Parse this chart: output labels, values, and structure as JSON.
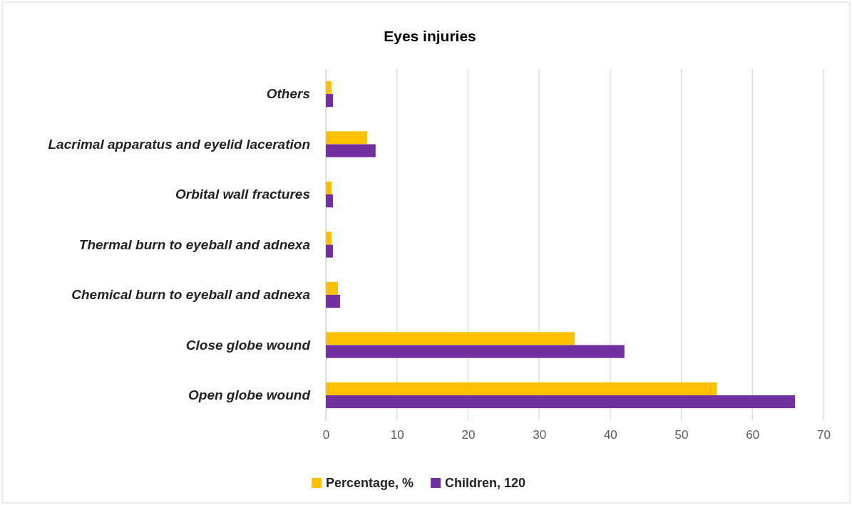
{
  "chart_data": {
    "type": "bar",
    "orientation": "horizontal",
    "title": "Eyes injuries",
    "categories": [
      "Others",
      "Lacrimal apparatus and eyelid laceration",
      "Orbital wall fractures",
      "Thermal burn to eyeball and adnexa",
      "Chemical burn to eyeball and adnexa",
      "Close globe wound",
      "Open globe wound"
    ],
    "series": [
      {
        "name": "Percentage, %",
        "color": "#ffc000",
        "values": [
          0.8,
          5.8,
          0.8,
          0.8,
          1.7,
          35,
          55
        ]
      },
      {
        "name": "Children, 120",
        "color": "#7030a0",
        "values": [
          1,
          7,
          1,
          1,
          2,
          42,
          66
        ]
      }
    ],
    "xlim": [
      0,
      70
    ],
    "xticks": [
      0,
      10,
      20,
      30,
      40,
      50,
      60,
      70
    ],
    "grid": "x",
    "legend": "bottom"
  }
}
